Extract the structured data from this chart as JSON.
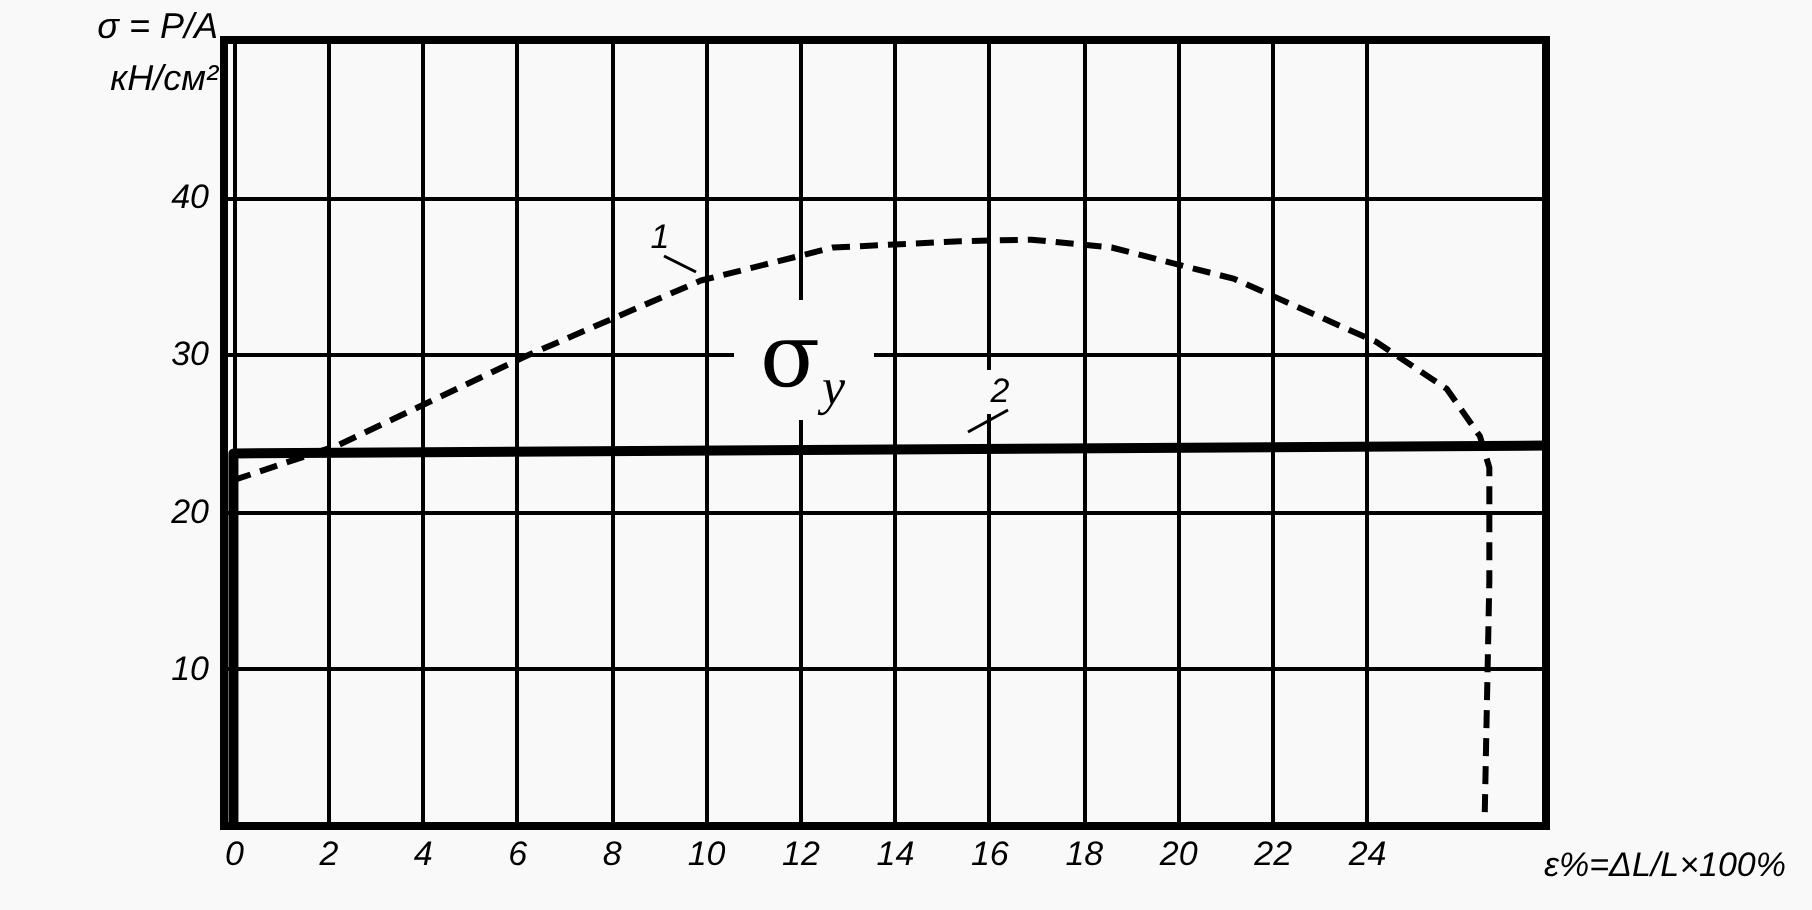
{
  "chart_data": {
    "type": "line",
    "ylabel": "σ = P/A\nкН/см²",
    "xlabel": "ε%=ΔL/L×100%",
    "xlim": [
      -0.2,
      27.8
    ],
    "ylim": [
      0,
      50
    ],
    "xticks": [
      0,
      2,
      4,
      6,
      8,
      10,
      12,
      14,
      16,
      18,
      20,
      22,
      24
    ],
    "yticks": [
      10,
      20,
      30,
      40
    ],
    "grid": true,
    "marker": "none",
    "series": [
      {
        "name": "1",
        "color": "#000000",
        "line_style": "dashed",
        "x": [
          0,
          2.2,
          6.2,
          9.9,
          12.7,
          15.4,
          16.9,
          18.6,
          21.2,
          24.2,
          25.7,
          26.4,
          26.6,
          26.6,
          26.5,
          26.5
        ],
        "values": [
          22.0,
          24.2,
          29.9,
          34.7,
          36.8,
          37.2,
          37.3,
          36.8,
          34.8,
          30.8,
          27.8,
          24.8,
          22.8,
          15.6,
          0.4,
          0
        ]
      },
      {
        "name": "2",
        "color": "#000000",
        "line_style": "solid",
        "x": [
          0,
          0,
          27.8
        ],
        "values": [
          0,
          23.7,
          24.2
        ]
      }
    ],
    "annotations": [
      "σ$_{y}$"
    ]
  }
}
